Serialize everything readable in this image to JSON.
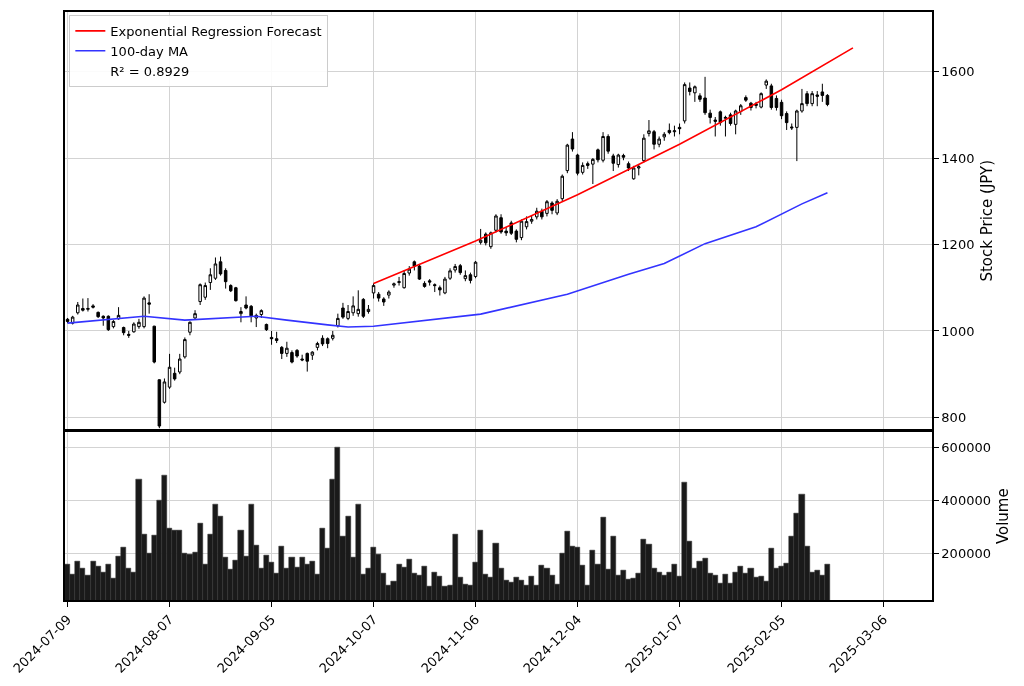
{
  "chart_data": [
    {
      "type": "candlestick",
      "color": "#000000",
      "ylabel": "Stock Price (JPY)",
      "ylim": [
        772,
        1738
      ],
      "yticks": [
        800,
        1000,
        1200,
        1400,
        1600
      ],
      "categories": [
        "2024-07-09",
        null,
        null,
        null,
        null,
        null,
        null,
        null,
        null,
        null,
        null,
        null,
        null,
        null,
        null,
        null,
        null,
        null,
        null,
        null,
        "2024-08-07",
        null,
        null,
        null,
        null,
        null,
        null,
        null,
        null,
        null,
        null,
        null,
        null,
        null,
        null,
        null,
        null,
        null,
        null,
        null,
        "2024-09-05",
        null,
        null,
        null,
        null,
        null,
        null,
        null,
        null,
        null,
        null,
        null,
        null,
        null,
        null,
        null,
        null,
        null,
        null,
        null,
        "2024-10-07",
        null,
        null,
        null,
        null,
        null,
        null,
        null,
        null,
        null,
        null,
        null,
        null,
        null,
        null,
        null,
        null,
        null,
        null,
        null,
        "2024-11-06",
        null,
        null,
        null,
        null,
        null,
        null,
        null,
        null,
        null,
        null,
        null,
        null,
        null,
        null,
        null,
        null,
        null,
        null,
        null,
        "2024-12-04",
        null,
        null,
        null,
        null,
        null,
        null,
        null,
        null,
        null,
        null,
        null,
        null,
        null,
        null,
        null,
        null,
        null,
        null,
        null,
        "2025-01-07",
        null,
        null,
        null,
        null,
        null,
        null,
        null,
        null,
        null,
        null,
        null,
        null,
        null,
        null,
        null,
        null,
        null,
        null,
        null,
        "2025-02-05",
        null,
        null,
        null,
        null,
        null,
        null,
        null,
        null,
        null,
        null,
        null,
        null,
        null,
        null,
        null,
        null,
        null,
        null,
        null,
        "2025-03-06",
        null,
        null,
        null,
        null,
        null,
        null,
        null,
        null,
        null
      ],
      "grid": true,
      "legend": "top left",
      "tick_labels": "y",
      "annotations": [
        "R² = 0.8929"
      ],
      "ohlc": [
        [
          1027,
          1030,
          1018,
          1022
        ],
        [
          1018,
          1035,
          1015,
          1032
        ],
        [
          1042,
          1067,
          1038,
          1060
        ],
        [
          1052,
          1075,
          1045,
          1048
        ],
        [
          1050,
          1076,
          1045,
          1052
        ],
        [
          1058,
          1062,
          1052,
          1055
        ],
        [
          1043,
          1045,
          1030,
          1033
        ],
        [
          1034,
          1036,
          1012,
          1030
        ],
        [
          1034,
          1036,
          1000,
          1003
        ],
        [
          1010,
          1025,
          1006,
          1022
        ],
        [
          1028,
          1055,
          1026,
          1036
        ],
        [
          1008,
          1010,
          990,
          996
        ],
        [
          992,
          1000,
          984,
          990
        ],
        [
          998,
          1020,
          996,
          1016
        ],
        [
          1010,
          1028,
          1005,
          1020
        ],
        [
          1010,
          1080,
          1006,
          1076
        ],
        [
          1065,
          1085,
          1040,
          1062
        ],
        [
          1011,
          1012,
          925,
          928
        ],
        [
          887,
          888,
          775,
          780
        ],
        [
          835,
          890,
          832,
          882
        ],
        [
          870,
          947,
          866,
          916
        ],
        [
          902,
          915,
          885,
          889
        ],
        [
          905,
          947,
          900,
          935
        ],
        [
          940,
          985,
          936,
          980
        ],
        [
          997,
          1022,
          990,
          1020
        ],
        [
          1030,
          1048,
          1028,
          1040
        ],
        [
          1068,
          1110,
          1060,
          1107
        ],
        [
          1078,
          1112,
          1072,
          1105
        ],
        [
          1112,
          1145,
          1095,
          1130
        ],
        [
          1122,
          1170,
          1118,
          1155
        ],
        [
          1160,
          1172,
          1128,
          1132
        ],
        [
          1140,
          1145,
          1098,
          1114
        ],
        [
          1105,
          1108,
          1090,
          1093
        ],
        [
          1100,
          1102,
          1068,
          1070
        ],
        [
          1040,
          1055,
          1020,
          1045
        ],
        [
          1060,
          1080,
          1050,
          1053
        ],
        [
          1057,
          1060,
          1020,
          1035
        ],
        [
          1030,
          1040,
          1009,
          1036
        ],
        [
          1038,
          1050,
          1030,
          1047
        ],
        [
          1015,
          1017,
          1000,
          1003
        ],
        [
          985,
          1000,
          968,
          982
        ],
        [
          982,
          998,
          972,
          978
        ],
        [
          962,
          965,
          935,
          948
        ],
        [
          948,
          975,
          940,
          960
        ],
        [
          950,
          955,
          925,
          928
        ],
        [
          955,
          958,
          938,
          942
        ],
        [
          935,
          945,
          930,
          933
        ],
        [
          948,
          950,
          906,
          930
        ],
        [
          944,
          953,
          933,
          951
        ],
        [
          962,
          975,
          955,
          971
        ],
        [
          983,
          990,
          965,
          970
        ],
        [
          982,
          985,
          960,
          971
        ],
        [
          983,
          1000,
          978,
          990
        ],
        [
          1012,
          1040,
          1008,
          1029
        ],
        [
          1053,
          1065,
          1028,
          1032
        ],
        [
          1029,
          1060,
          1025,
          1045
        ],
        [
          1042,
          1080,
          1035,
          1058
        ],
        [
          1040,
          1094,
          1033,
          1050
        ],
        [
          1073,
          1076,
          1030,
          1034
        ],
        [
          1045,
          1060,
          1040,
          1050
        ],
        [
          1088,
          1110,
          1075,
          1105
        ],
        [
          1085,
          1090,
          1068,
          1076
        ],
        [
          1074,
          1078,
          1058,
          1067
        ],
        [
          1083,
          1094,
          1075,
          1090
        ],
        [
          1106,
          1112,
          1100,
          1109
        ],
        [
          1112,
          1125,
          1105,
          1114
        ],
        [
          1100,
          1140,
          1098,
          1133
        ],
        [
          1134,
          1150,
          1128,
          1143
        ],
        [
          1160,
          1163,
          1140,
          1150
        ],
        [
          1150,
          1155,
          1118,
          1120
        ],
        [
          1110,
          1115,
          1100,
          1103
        ],
        [
          1116,
          1120,
          1105,
          1113
        ],
        [
          1107,
          1110,
          1090,
          1105
        ],
        [
          1100,
          1105,
          1082,
          1095
        ],
        [
          1088,
          1125,
          1085,
          1120
        ],
        [
          1122,
          1145,
          1118,
          1139
        ],
        [
          1141,
          1155,
          1135,
          1149
        ],
        [
          1151,
          1155,
          1130,
          1135
        ],
        [
          1121,
          1140,
          1115,
          1128
        ],
        [
          1130,
          1135,
          1110,
          1117
        ],
        [
          1126,
          1162,
          1122,
          1159
        ],
        [
          1205,
          1236,
          1200,
          1210
        ],
        [
          1224,
          1228,
          1198,
          1204
        ],
        [
          1195,
          1230,
          1190,
          1227
        ],
        [
          1233,
          1270,
          1228,
          1266
        ],
        [
          1262,
          1270,
          1225,
          1229
        ],
        [
          1231,
          1240,
          1220,
          1227
        ],
        [
          1250,
          1255,
          1222,
          1226
        ],
        [
          1231,
          1235,
          1205,
          1212
        ],
        [
          1216,
          1258,
          1210,
          1254
        ],
        [
          1241,
          1265,
          1235,
          1253
        ],
        [
          1254,
          1268,
          1248,
          1258
        ],
        [
          1264,
          1285,
          1258,
          1277
        ],
        [
          1277,
          1283,
          1258,
          1264
        ],
        [
          1272,
          1303,
          1265,
          1299
        ],
        [
          1296,
          1300,
          1270,
          1279
        ],
        [
          1273,
          1305,
          1268,
          1300
        ],
        [
          1306,
          1362,
          1300,
          1358
        ],
        [
          1371,
          1433,
          1365,
          1430
        ],
        [
          1444,
          1460,
          1415,
          1421
        ],
        [
          1407,
          1410,
          1360,
          1365
        ],
        [
          1367,
          1390,
          1362,
          1383
        ],
        [
          1387,
          1392,
          1375,
          1383
        ],
        [
          1386,
          1400,
          1340,
          1397
        ],
        [
          1419,
          1422,
          1390,
          1396
        ],
        [
          1395,
          1460,
          1390,
          1450
        ],
        [
          1450,
          1455,
          1410,
          1416
        ],
        [
          1405,
          1410,
          1370,
          1388
        ],
        [
          1385,
          1410,
          1378,
          1407
        ],
        [
          1406,
          1410,
          1395,
          1402
        ],
        [
          1387,
          1392,
          1370,
          1377
        ],
        [
          1352,
          1382,
          1350,
          1377
        ],
        [
          1377,
          1385,
          1360,
          1380
        ],
        [
          1394,
          1455,
          1390,
          1446
        ],
        [
          1457,
          1488,
          1450,
          1463
        ],
        [
          1461,
          1465,
          1420,
          1432
        ],
        [
          1432,
          1450,
          1425,
          1444
        ],
        [
          1449,
          1460,
          1440,
          1455
        ],
        [
          1464,
          1480,
          1455,
          1459
        ],
        [
          1461,
          1475,
          1450,
          1463
        ],
        [
          1471,
          1480,
          1455,
          1468
        ],
        [
          1486,
          1575,
          1480,
          1570
        ],
        [
          1562,
          1575,
          1545,
          1554
        ],
        [
          1551,
          1568,
          1530,
          1565
        ],
        [
          1544,
          1550,
          1530,
          1536
        ],
        [
          1539,
          1588,
          1500,
          1505
        ],
        [
          1504,
          1512,
          1480,
          1494
        ],
        [
          1488,
          1495,
          1450,
          1485
        ],
        [
          1507,
          1510,
          1475,
          1482
        ],
        [
          1492,
          1498,
          1450,
          1494
        ],
        [
          1500,
          1505,
          1475,
          1480
        ],
        [
          1478,
          1512,
          1455,
          1509
        ],
        [
          1508,
          1525,
          1500,
          1521
        ],
        [
          1540,
          1545,
          1530,
          1534
        ],
        [
          1527,
          1530,
          1510,
          1517
        ],
        [
          1525,
          1530,
          1515,
          1522
        ],
        [
          1518,
          1552,
          1515,
          1549
        ],
        [
          1569,
          1582,
          1560,
          1578
        ],
        [
          1567,
          1572,
          1512,
          1517
        ],
        [
          1538,
          1545,
          1510,
          1517
        ],
        [
          1529,
          1535,
          1490,
          1498
        ],
        [
          1503,
          1508,
          1465,
          1482
        ],
        [
          1472,
          1480,
          1465,
          1470
        ],
        [
          1471,
          1512,
          1393,
          1509
        ],
        [
          1509,
          1560,
          1505,
          1526
        ],
        [
          1549,
          1555,
          1520,
          1526
        ],
        [
          1526,
          1555,
          1520,
          1549
        ],
        [
          1546,
          1555,
          1520,
          1543
        ],
        [
          1553,
          1572,
          1530,
          1545
        ],
        [
          1545,
          1548,
          1520,
          1524
        ],
        null,
        null,
        null,
        null,
        null,
        null,
        null,
        null,
        null,
        null,
        null,
        null,
        null,
        null,
        null,
        null,
        null,
        null,
        null,
        null
      ],
      "series": [
        {
          "name": "Exponential Regression Forecast",
          "type": "line",
          "color": "#ff0000",
          "values": [
            null,
            null,
            null,
            null,
            null,
            null,
            null,
            null,
            null,
            null,
            null,
            null,
            null,
            null,
            null,
            null,
            null,
            null,
            null,
            null,
            null,
            null,
            null,
            null,
            null,
            null,
            null,
            null,
            null,
            null,
            null,
            null,
            null,
            null,
            null,
            null,
            null,
            null,
            null,
            null,
            null,
            null,
            null,
            null,
            null,
            null,
            null,
            null,
            null,
            null,
            null,
            null,
            null,
            null,
            null,
            null,
            null,
            null,
            null,
            null,
            1110,
            null,
            null,
            null,
            null,
            null,
            null,
            null,
            null,
            null,
            null,
            null,
            null,
            null,
            null,
            null,
            null,
            null,
            null,
            null,
            1208,
            null,
            null,
            null,
            null,
            null,
            null,
            null,
            null,
            null,
            null,
            null,
            null,
            null,
            null,
            null,
            null,
            null,
            null,
            null,
            1315,
            null,
            null,
            null,
            null,
            null,
            null,
            null,
            null,
            null,
            null,
            null,
            null,
            null,
            null,
            null,
            null,
            null,
            null,
            null,
            1432,
            null,
            null,
            null,
            null,
            null,
            null,
            null,
            null,
            null,
            null,
            null,
            null,
            null,
            null,
            null,
            null,
            null,
            null,
            null,
            1558,
            null,
            null,
            null,
            null,
            null,
            null,
            null,
            null,
            null,
            null,
            null,
            null,
            null,
            1655,
            null,
            null,
            null,
            null,
            null,
            null,
            null,
            null,
            null,
            null,
            null,
            null,
            null,
            null,
            null
          ]
        },
        {
          "name": "100-day MA",
          "type": "line",
          "color": "#3333ff",
          "values": [
            1018,
            null,
            null,
            null,
            null,
            null,
            null,
            null,
            null,
            null,
            null,
            null,
            null,
            null,
            null,
            1034,
            null,
            null,
            null,
            null,
            null,
            null,
            null,
            1025,
            null,
            null,
            null,
            null,
            null,
            null,
            null,
            null,
            null,
            null,
            null,
            null,
            null,
            1034,
            null,
            null,
            null,
            null,
            null,
            1025,
            null,
            null,
            null,
            null,
            null,
            null,
            null,
            1014,
            null,
            null,
            null,
            1009,
            null,
            null,
            null,
            null,
            1011,
            null,
            null,
            null,
            null,
            null,
            null,
            null,
            null,
            null,
            null,
            null,
            null,
            null,
            null,
            null,
            null,
            null,
            null,
            null,
            null,
            1039,
            null,
            null,
            null,
            null,
            null,
            null,
            null,
            null,
            null,
            null,
            null,
            null,
            null,
            null,
            null,
            null,
            1085,
            null,
            null,
            null,
            null,
            null,
            null,
            null,
            null,
            null,
            null,
            null,
            1131,
            null,
            null,
            null,
            null,
            null,
            null,
            1156,
            null,
            null,
            null,
            null,
            null,
            null,
            null,
            1202,
            null,
            null,
            null,
            null,
            null,
            null,
            null,
            null,
            null,
            1241,
            null,
            null,
            null,
            null,
            null,
            null,
            null,
            null,
            1294,
            null,
            null,
            null,
            null,
            1320,
            null,
            null,
            null,
            null,
            null,
            null,
            null,
            null,
            null,
            null,
            null,
            null,
            null,
            null,
            null,
            null,
            null,
            null,
            null,
            null
          ]
        }
      ]
    },
    {
      "type": "bar",
      "color": "#1a1a1a",
      "ylabel": "Volume",
      "ylim": [
        27000,
        656000
      ],
      "yticks": [
        200000,
        400000,
        600000
      ],
      "grid": true,
      "categories": [
        "2024-07-09",
        null,
        null,
        null,
        null,
        null,
        null,
        null,
        null,
        null,
        null,
        null,
        null,
        null,
        null,
        null,
        null,
        null,
        null,
        null,
        "2024-08-07",
        null,
        null,
        null,
        null,
        null,
        null,
        null,
        null,
        null,
        null,
        null,
        null,
        null,
        null,
        null,
        null,
        null,
        null,
        null,
        "2024-09-05",
        null,
        null,
        null,
        null,
        null,
        null,
        null,
        null,
        null,
        null,
        null,
        null,
        null,
        null,
        null,
        null,
        null,
        null,
        null,
        "2024-10-07",
        null,
        null,
        null,
        null,
        null,
        null,
        null,
        null,
        null,
        null,
        null,
        null,
        null,
        null,
        null,
        null,
        null,
        null,
        null,
        "2024-11-06",
        null,
        null,
        null,
        null,
        null,
        null,
        null,
        null,
        null,
        null,
        null,
        null,
        null,
        null,
        null,
        null,
        null,
        null,
        null,
        "2024-12-04",
        null,
        null,
        null,
        null,
        null,
        null,
        null,
        null,
        null,
        null,
        null,
        null,
        null,
        null,
        null,
        null,
        null,
        null,
        null,
        "2025-01-07",
        null,
        null,
        null,
        null,
        null,
        null,
        null,
        null,
        null,
        null,
        null,
        null,
        null,
        null,
        null,
        null,
        null,
        null,
        null,
        "2025-02-05",
        null,
        null,
        null,
        null,
        null,
        null,
        null,
        null,
        null,
        null,
        null,
        null,
        null,
        null,
        null,
        null,
        null,
        null,
        null,
        "2025-03-06",
        null,
        null,
        null,
        null,
        null,
        null,
        null,
        null,
        null
      ],
      "values": [
        162000,
        122000,
        171000,
        146000,
        121000,
        171000,
        154000,
        129000,
        159000,
        107000,
        190000,
        225000,
        146000,
        131000,
        481000,
        275000,
        200000,
        268000,
        399000,
        493000,
        297000,
        288000,
        288000,
        200000,
        197000,
        204000,
        315000,
        162000,
        274000,
        384000,
        342000,
        187000,
        140000,
        177000,
        288000,
        191000,
        384000,
        233000,
        147000,
        194000,
        169000,
        127000,
        229000,
        144000,
        187000,
        150000,
        187000,
        162000,
        171000,
        124000,
        294000,
        219000,
        481000,
        600000,
        265000,
        342000,
        187000,
        387000,
        122000,
        147000,
        225000,
        197000,
        125000,
        83000,
        97000,
        159000,
        150000,
        181000,
        127000,
        121000,
        154000,
        78000,
        129000,
        116000,
        78000,
        83000,
        273000,
        112000,
        87000,
        81000,
        167000,
        290000,
        122000,
        110000,
        238000,
        145000,
        100000,
        93000,
        112000,
        102000,
        83000,
        116000,
        81000,
        155000,
        146000,
        118000,
        87000,
        203000,
        284000,
        229000,
        223000,
        157000,
        81000,
        213000,
        162000,
        338000,
        140000,
        266000,
        118000,
        137000,
        103000,
        107000,
        125000,
        256000,
        235000,
        146000,
        131000,
        121000,
        129000,
        160000,
        116000,
        467000,
        248000,
        146000,
        172000,
        184000,
        125000,
        118000,
        90000,
        122000,
        90000,
        131000,
        154000,
        125000,
        146000,
        110000,
        116000,
        96000,
        219000,
        144000,
        152000,
        165000,
        266000,
        353000,
        422000,
        229000,
        131000,
        137000,
        118000,
        161000,
        null,
        null,
        null,
        null,
        null,
        null,
        null,
        null,
        null,
        null,
        null,
        null,
        null,
        null,
        null,
        null,
        null,
        null,
        null,
        null
      ]
    }
  ]
}
